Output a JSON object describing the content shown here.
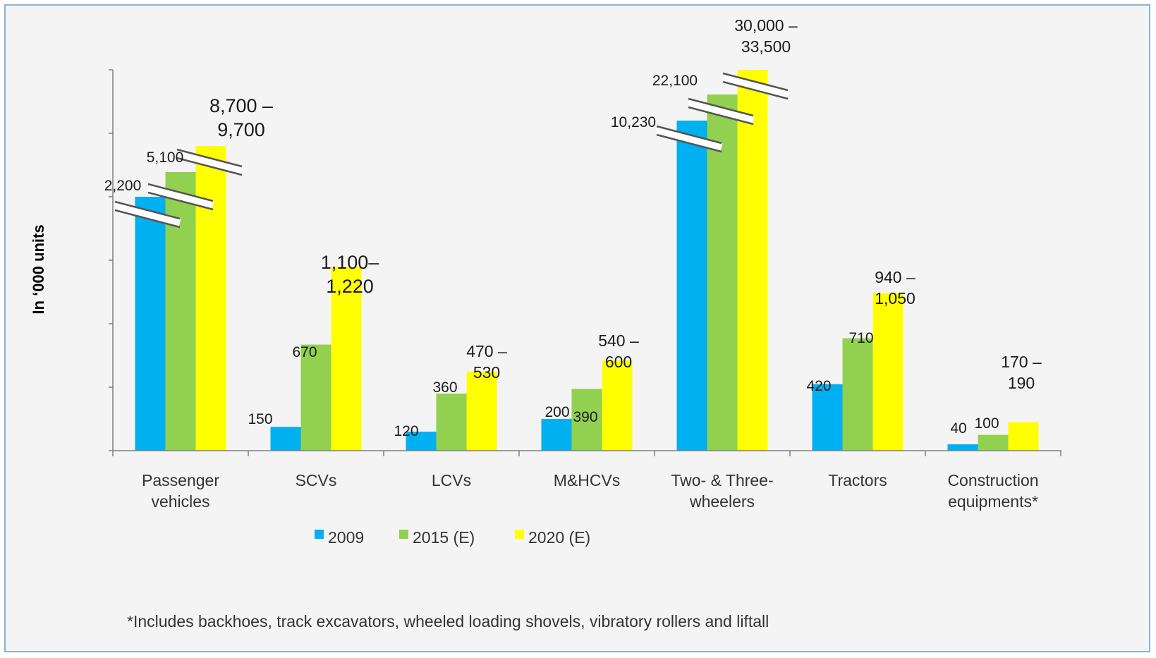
{
  "chart_data": {
    "type": "bar",
    "ylabel": "In ‘000 units",
    "categories": [
      [
        "Passenger",
        "vehicles"
      ],
      [
        "SCVs"
      ],
      [
        "LCVs"
      ],
      [
        "M&HCVs"
      ],
      [
        "Two- & Three-",
        "wheelers"
      ],
      [
        "Tractors"
      ],
      [
        "Construction",
        "equipments*"
      ]
    ],
    "series": [
      {
        "name": "2009",
        "color": "#00b0f0",
        "values": [
          2200,
          150,
          120,
          200,
          10230,
          420,
          40
        ]
      },
      {
        "name": "2015 (E)",
        "color": "#92d050",
        "values": [
          5100,
          670,
          360,
          390,
          22100,
          710,
          100
        ]
      },
      {
        "name": "2020 (E)",
        "color": "#ffff00",
        "values": [
          9200,
          1160,
          500,
          570,
          31750,
          995,
          180
        ]
      }
    ],
    "data_labels": [
      [
        [
          "2,200"
        ],
        [
          "5,100"
        ],
        [
          "8,700 –",
          "9,700"
        ]
      ],
      [
        [
          "150"
        ],
        [
          "670"
        ],
        [
          "1,100–",
          "1,220"
        ]
      ],
      [
        [
          "120"
        ],
        [
          "360"
        ],
        [
          "470 –",
          "530"
        ]
      ],
      [
        [
          "200"
        ],
        [
          "390"
        ],
        [
          "540 –",
          "600"
        ]
      ],
      [
        [
          "10,230"
        ],
        [
          "22,100"
        ],
        [
          "30,000 –",
          "33,500"
        ]
      ],
      [
        [
          "420"
        ],
        [
          "710"
        ],
        [
          "940 –",
          "1,050"
        ]
      ],
      [
        [
          "40"
        ],
        [
          "100"
        ],
        [
          "170 –",
          "190"
        ]
      ]
    ],
    "broken_axis_categories": [
      0,
      4
    ],
    "legend_position": "bottom",
    "grid": false
  },
  "footnote": "*Includes backhoes, track excavators, wheeled loading shovels, vibratory rollers and liftall"
}
